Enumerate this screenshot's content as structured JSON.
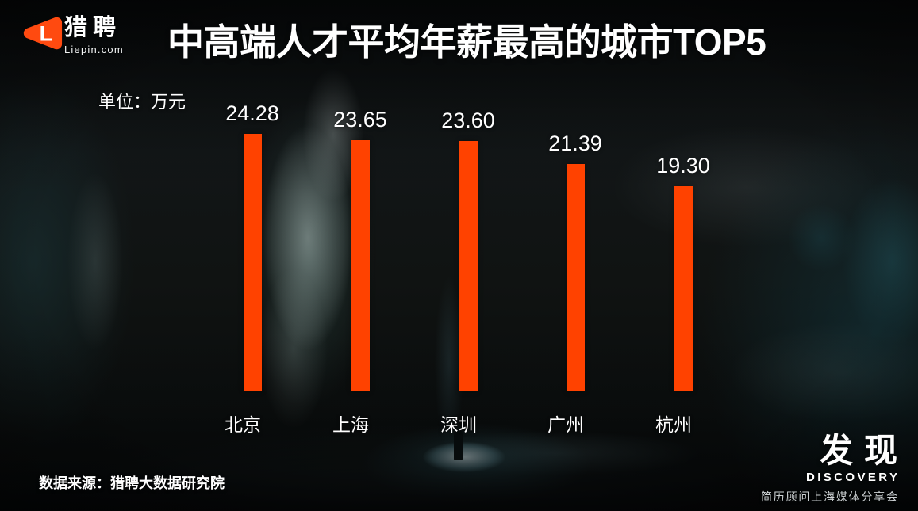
{
  "brand": {
    "logo_letter": "L",
    "name": "猎聘",
    "domain": "Liepin.com"
  },
  "header": {
    "title": "中高端人才平均年薪最高的城市TOP5"
  },
  "chart_data": {
    "type": "bar",
    "title": "中高端人才平均年薪最高的城市TOP5",
    "categories": [
      "北京",
      "上海",
      "深圳",
      "广州",
      "杭州"
    ],
    "values": [
      24.28,
      23.65,
      23.6,
      21.39,
      19.3
    ],
    "xlabel": "",
    "ylabel": "单位：万元",
    "ylim": [
      0,
      25
    ],
    "grid": false,
    "legend": "none",
    "bar_color": "#ff4200"
  },
  "footer": {
    "source": "数据来源：猎聘大数据研究院"
  },
  "discovery": {
    "cn": "发现",
    "en": "DISCOVERY",
    "subtitle": "简历顾问上海媒体分享会"
  },
  "colors": {
    "accent": "#ff4200",
    "text": "#ffffff",
    "background": "#0b0e0f"
  }
}
